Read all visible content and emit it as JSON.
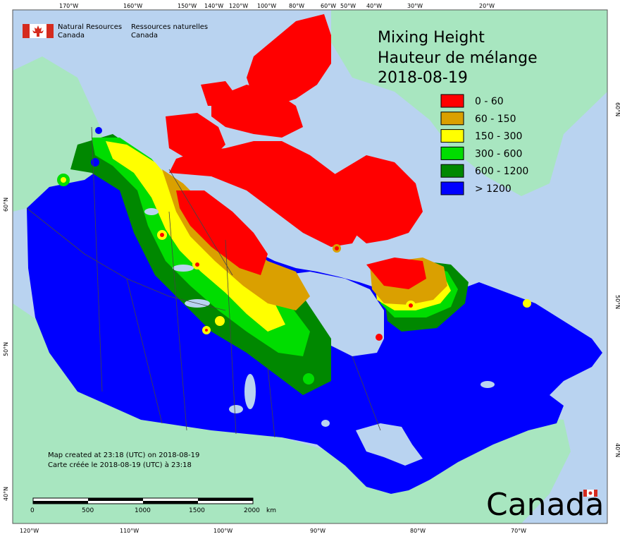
{
  "header": {
    "agency_en_line1": "Natural Resources",
    "agency_en_line2": "Canada",
    "agency_fr_line1": "Ressources naturelles",
    "agency_fr_line2": "Canada"
  },
  "title": {
    "en": "Mixing Height",
    "fr": "Hauteur de mélange",
    "date": "2018-08-19"
  },
  "legend": {
    "items": [
      {
        "label": "0 - 60",
        "color": "#ff0000"
      },
      {
        "label": "60 - 150",
        "color": "#daa000"
      },
      {
        "label": "150 - 300",
        "color": "#ffff00"
      },
      {
        "label": "300 - 600",
        "color": "#00dd00"
      },
      {
        "label": "600 - 1200",
        "color": "#008800"
      },
      {
        "label": "> 1200",
        "color": "#0000ff"
      }
    ]
  },
  "footer": {
    "created_en": "Map created at 23:18 (UTC) on 2018-08-19",
    "created_fr": "Carte créée le 2018-08-19 (UTC) à 23:18",
    "wordmark": "Canada"
  },
  "scale_bar": {
    "ticks": [
      "0",
      "500",
      "1000",
      "1500",
      "2000"
    ],
    "unit": "km"
  },
  "graticule": {
    "top_labels": [
      "170°W",
      "160°W",
      "150°W",
      "140°W",
      "120°W",
      "100°W",
      "80°W",
      "60°W",
      "50°W",
      "40°W",
      "30°W",
      "20°W"
    ],
    "bottom_labels": [
      "120°W",
      "110°W",
      "100°W",
      "90°W",
      "80°W",
      "70°W"
    ],
    "left_labels": [
      "60°N",
      "50°N",
      "40°N"
    ],
    "right_labels": [
      "60°N",
      "50°N",
      "40°N"
    ]
  },
  "colors": {
    "ocean": "#b9d3f0",
    "foreign_land": "#a8e6c0",
    "border": "#555555",
    "flag_red": "#d52b1e"
  }
}
